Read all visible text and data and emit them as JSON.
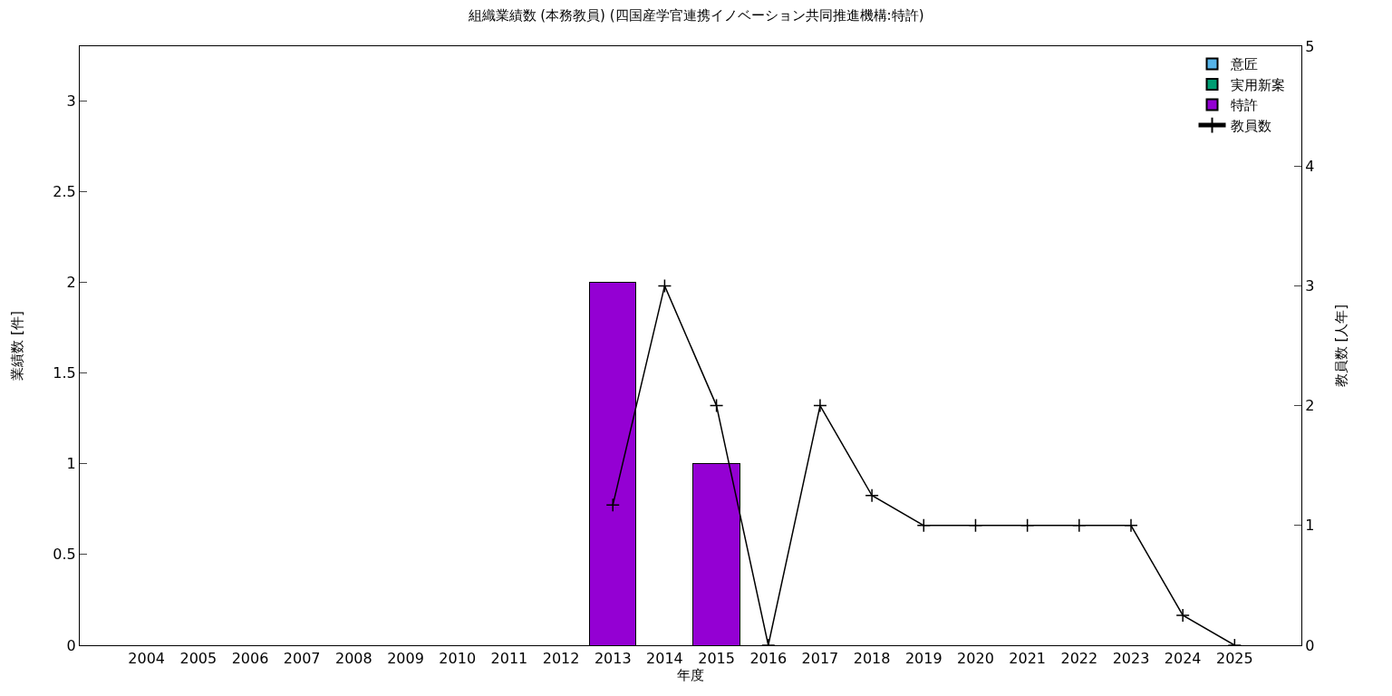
{
  "chart_data": {
    "type": "bar",
    "stacked": true,
    "title": "組織業績数 (本務教員) (四国産学官連携イノベーション共同推進機構:特許)",
    "xlabel": "年度",
    "ylabel": "業績数 [件]",
    "y2label": "教員数 [人年]",
    "categories": [
      "2004",
      "2005",
      "2006",
      "2007",
      "2008",
      "2009",
      "2010",
      "2011",
      "2012",
      "2013",
      "2014",
      "2015",
      "2016",
      "2017",
      "2018",
      "2019",
      "2020",
      "2021",
      "2022",
      "2023",
      "2024",
      "2025"
    ],
    "series": [
      {
        "name": "意匠",
        "color": "#56b4e9",
        "values": [
          0,
          0,
          0,
          0,
          0,
          0,
          0,
          0,
          0,
          0,
          0,
          0,
          0,
          0,
          0,
          0,
          0,
          0,
          0,
          0,
          0,
          0
        ]
      },
      {
        "name": "実用新案",
        "color": "#009e73",
        "values": [
          0,
          0,
          0,
          0,
          0,
          0,
          0,
          0,
          0,
          0,
          0,
          0,
          0,
          0,
          0,
          0,
          0,
          0,
          0,
          0,
          0,
          0
        ]
      },
      {
        "name": "特許",
        "color": "#9400d3",
        "values": [
          0,
          0,
          0,
          0,
          0,
          0,
          0,
          0,
          0,
          2,
          0,
          1,
          0,
          0,
          0,
          0,
          0,
          0,
          0,
          0,
          0,
          0
        ]
      },
      {
        "name": "教員数",
        "type": "line",
        "axis": "y2",
        "color": "#000000",
        "marker": "cross",
        "values": [
          null,
          null,
          null,
          null,
          null,
          null,
          null,
          null,
          null,
          1.17,
          3,
          2,
          0,
          2,
          1.25,
          1,
          1,
          1,
          1,
          1,
          0.25,
          0
        ]
      }
    ],
    "ylim": [
      0,
      3.3
    ],
    "yticks": [
      0,
      0.5,
      1,
      1.5,
      2,
      2.5,
      3
    ],
    "y2lim": [
      0,
      5
    ],
    "y2ticks": [
      0,
      1,
      2,
      3,
      4,
      5
    ],
    "grid": false,
    "legend": "top right"
  }
}
